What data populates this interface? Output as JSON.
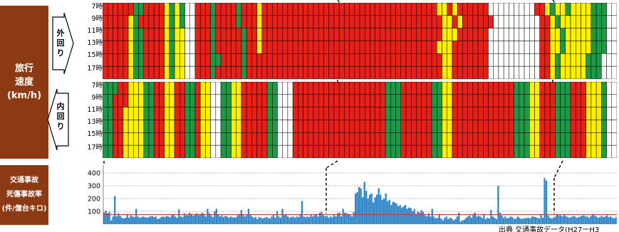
{
  "sidebar": {
    "speed_label_lines": [
      "旅行",
      "速度",
      "(km/h)"
    ],
    "accident_label_lines": [
      "交通事故",
      "死傷事故率",
      "(件/億台キロ)"
    ]
  },
  "outer_loop_label": "外回り",
  "inner_loop_label": "内回り",
  "hour_labels": [
    "7時",
    "9時",
    "11時",
    "13時",
    "15時",
    "17時"
  ],
  "source_text": "出典 交通事故データ(H27ーH3",
  "colors": {
    "sidebar": "#8b3a14",
    "speed_fast": "#1e9a46",
    "speed_medium": "#ffef00",
    "speed_slow": "#e8201a",
    "speed_none": "#ffffff",
    "bar": "#2f86c8",
    "reference_line": "#e03030",
    "grid": "#9a9a9a"
  },
  "chart_data": [
    {
      "type": "heatmap",
      "title": "外回り",
      "y_categories": [
        "7時",
        "9時",
        "11時",
        "13時",
        "15時",
        "17時"
      ],
      "column_count": 100,
      "legend": {
        "G": "fast",
        "Y": "medium",
        "R": "slow",
        "W": "no data"
      },
      "rows": [
        "RRRRRRGGRRRRYGYGWWRRRGRRRRGRRRYRRRRRRRRRRRRRRRRRRRRRRRRRRRRRRRRRRYYRYRRRRRRWWWWWWWWWRRYGYYGYYYYGGG",
        "RRRRRYGRRRRRYGYGWWRRRGRRRRGRRRYRRRRRRRRRRRRRRRRRRRRRRRRRRRRRRRRRRRYYRYRRRRRRWWWWWWWWWRRYGYYYYYYGGG",
        "RRRRRYGGRRRRYGYYWWRRRGRRRRRGRRYRRRRRRRRRRRRRRRRRRRRRRRRRRRRRRRRRRRYYYRRRRRRWWWWWWWWWWRRYYGYYYYYGGG",
        "RRRRRYGGRRRRYGYYWWRRRGRRRRRGRRYRRRRRRRRRRRRRRRRRRRRRRRRRRRRRRRRRRYYYRRRRRRRWWWWWWWWWWRRYYGYYYYYGGG",
        "RRRRRYGGRRRRYGYYWWRRRGGRRRRGRRRRRRRRRRRRRRRRRRRRRRRRRRRRRRRRRRRRRRYYRRRRRRRWWWWWWWWWWRRYGYYYYYGGG",
        "RRRRRYGGRRRRYGYYWWRRRGRRRRRGRRRRRRRRRRRRRRRRRRRRRRRRRRRRRRRRRRRRRRYYRRRRRRRWWWWWWWWWWRRYGYYYYYGGG"
      ]
    },
    {
      "type": "heatmap",
      "title": "内回り",
      "y_categories": [
        "7時",
        "9時",
        "11時",
        "13時",
        "15時",
        "17時"
      ],
      "column_count": 100,
      "legend": {
        "G": "fast",
        "Y": "medium",
        "R": "slow",
        "W": "no data"
      },
      "rows": [
        "GGGRRYYYGGRRYYRRGGRYYWWGGYYRRRRRGGWWWRRRRRRRRRRRRRRRRRRGGGRRRRRRGGYYRRRRRRRRRRRRGGGYYRRRGGGRRRYYYG",
        "GGRRRYYYGGRRYYRRGGRYYWWGGYYRRRRRGGWWWRRRRRRRRRRRRRRRRRRGGGRRRRRRGGYYRRRRRRRRRRRRGGGYYRRRGGGRRRYYYG",
        "GGRRYYYYGGRRYYRRGGRYYWWGGYYRRRRRGGWWWRRRRRRRRRRRRRRRRRRGGGRRRRRRGGYYRRRRRRRRRRRRGGGYYRRRGGGRRRYYYG",
        "GGRRYYYYGGRRYYRRGGRYYWWGGYYRRRRRGGWWWRRRRRRRRRRRRRRRRRRGGGRRRRRRGGYYRRRRRRRRRRRRGGGYYRRRGGGRRRYYYG",
        "GGRRYYYYGGRRYYRRGGRYYWWGGYYRRRRRGGWWWRRRRRRRRRRRRRRRRRRGGGRRRRRRGGYYRRRRRRRRRRRRGGGYYRRRGGGRRRYYYG",
        "GGRRYYYYGGRRYYRRGGRYYWWGGYYRRRRRGGWWWRRRRRRRRRRRRRRRRRRGGGRRRRRRGGYYRRRRRRRRRRRRGGGYYRRRGGGRRRYYYG"
      ]
    },
    {
      "type": "bar",
      "title": "交通事故 死傷事故率 (件/億台キロ)",
      "yticks": [
        100,
        200,
        300,
        400
      ],
      "ylim": [
        0,
        450
      ],
      "reference_line": 75,
      "grid": true,
      "values": [
        90,
        105,
        85,
        95,
        30,
        60,
        220,
        60,
        85,
        65,
        50,
        45,
        50,
        75,
        50,
        70,
        60,
        55,
        120,
        60,
        50,
        55,
        60,
        55,
        50,
        55,
        60,
        65,
        55,
        60,
        40,
        45,
        55,
        60,
        55,
        65,
        60,
        55,
        70,
        75,
        60,
        50,
        115,
        60,
        55,
        85,
        70,
        70,
        90,
        80,
        65,
        75,
        85,
        70,
        75,
        90,
        80,
        60,
        120,
        85,
        70,
        55,
        100,
        120,
        75,
        60,
        70,
        55,
        65,
        60,
        50,
        60,
        55,
        50,
        55,
        70,
        80,
        110,
        75,
        60,
        75,
        120,
        75,
        60,
        50,
        55,
        40,
        55,
        50,
        45,
        50,
        55,
        50,
        45,
        60,
        75,
        50,
        100,
        60,
        50,
        120,
        70,
        80,
        60,
        50,
        55,
        60,
        50,
        60,
        55,
        80,
        180,
        60,
        55,
        60,
        55,
        75,
        60,
        70,
        80,
        60,
        90,
        95,
        70,
        60,
        65,
        50,
        60,
        55,
        75,
        60,
        85,
        90,
        60,
        120,
        90,
        85,
        80,
        75,
        60,
        95,
        240,
        250,
        290,
        280,
        210,
        330,
        260,
        200,
        230,
        240,
        170,
        210,
        230,
        280,
        230,
        190,
        200,
        240,
        180,
        190,
        150,
        175,
        170,
        160,
        140,
        150,
        130,
        140,
        150,
        120,
        130,
        125,
        100,
        120,
        80,
        100,
        90,
        110,
        95,
        70,
        60,
        85,
        60,
        120,
        60,
        45,
        50,
        80,
        45,
        30,
        50,
        60,
        40,
        50,
        45,
        30,
        40,
        60,
        90,
        20,
        30,
        35,
        50,
        60,
        70,
        50,
        80,
        90,
        60,
        65,
        60,
        50,
        80,
        40,
        50,
        45,
        110,
        60,
        50,
        40,
        300,
        90,
        70,
        50,
        60,
        45,
        50,
        60,
        55,
        40,
        45,
        60,
        50,
        40,
        45,
        45,
        50,
        50,
        45,
        60,
        60,
        55,
        50,
        45,
        80,
        50,
        360,
        340,
        70,
        50,
        45,
        50,
        60,
        80,
        70,
        70,
        60,
        75,
        65,
        55,
        50,
        55,
        65,
        60,
        50,
        55,
        60,
        65,
        70,
        60,
        60,
        50,
        65,
        75,
        70,
        60,
        50,
        55,
        65,
        55,
        60,
        70,
        55,
        60,
        50,
        45,
        55
      ]
    }
  ]
}
